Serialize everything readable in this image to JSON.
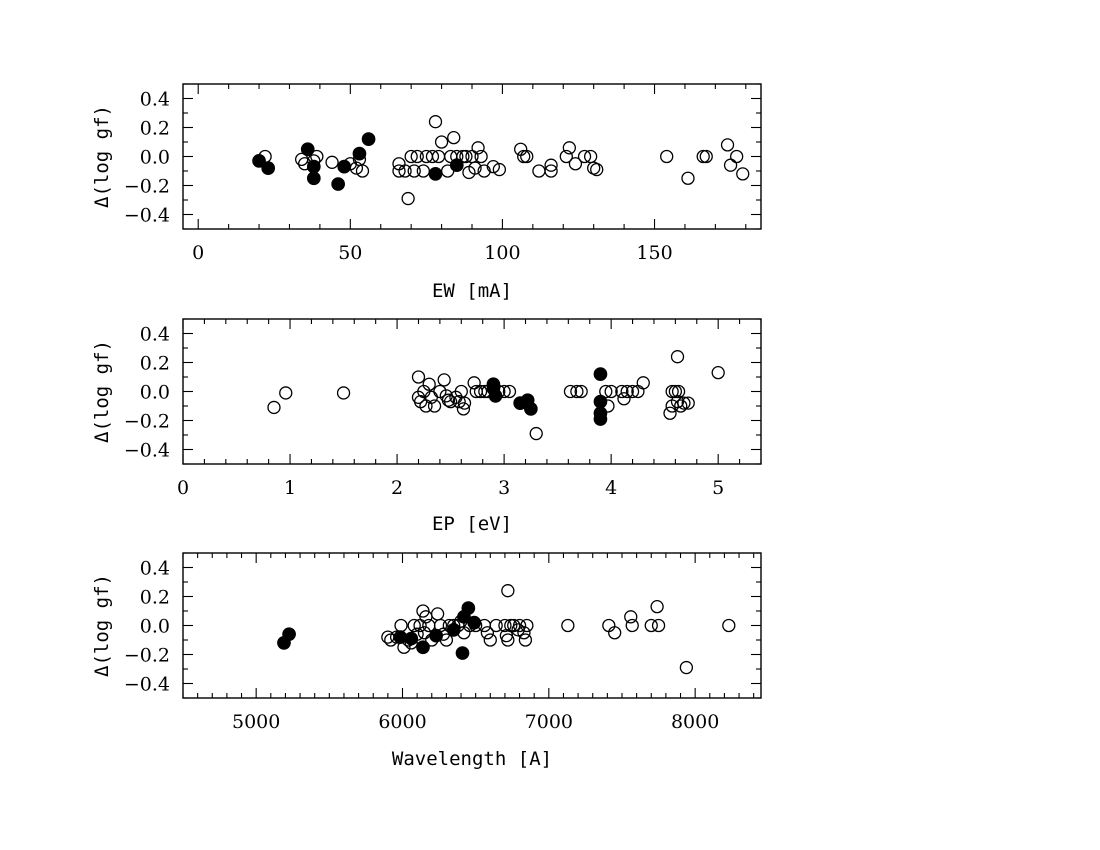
{
  "chart_data": [
    {
      "type": "scatter",
      "xlabel": "EW [mA]",
      "ylabel": "Δ(log gf)",
      "xlim": [
        -5,
        185
      ],
      "ylim": [
        -0.5,
        0.5
      ],
      "x_ticks": [
        0,
        50,
        100,
        150
      ],
      "y_ticks": [
        -0.4,
        -0.2,
        0.0,
        0.2,
        0.4
      ],
      "y_tick_labels": [
        "−0.4",
        "−0.2",
        "0.0",
        "0.2",
        "0.4"
      ],
      "series": [
        {
          "marker": "open-circle",
          "points": [
            [
              22,
              0
            ],
            [
              34,
              -0.02
            ],
            [
              35,
              -0.05
            ],
            [
              38,
              -0.03
            ],
            [
              39,
              0
            ],
            [
              44,
              -0.04
            ],
            [
              48,
              -0.07
            ],
            [
              50,
              -0.05
            ],
            [
              52,
              -0.08
            ],
            [
              53,
              -0.02
            ],
            [
              54,
              -0.1
            ],
            [
              66,
              -0.05
            ],
            [
              66,
              -0.1
            ],
            [
              68,
              -0.1
            ],
            [
              69,
              -0.29
            ],
            [
              70,
              0
            ],
            [
              71,
              -0.1
            ],
            [
              72,
              0
            ],
            [
              74,
              -0.1
            ],
            [
              75,
              0
            ],
            [
              77,
              0
            ],
            [
              78,
              0.24
            ],
            [
              79,
              0
            ],
            [
              80,
              0.1
            ],
            [
              82,
              -0.1
            ],
            [
              83,
              0
            ],
            [
              84,
              0.13
            ],
            [
              85,
              0
            ],
            [
              87,
              0
            ],
            [
              88,
              0
            ],
            [
              89,
              -0.11
            ],
            [
              90,
              0
            ],
            [
              91,
              -0.08
            ],
            [
              92,
              0.06
            ],
            [
              93,
              0
            ],
            [
              94,
              -0.1
            ],
            [
              97,
              -0.07
            ],
            [
              99,
              -0.09
            ],
            [
              106,
              0.05
            ],
            [
              107,
              0
            ],
            [
              108,
              0
            ],
            [
              112,
              -0.1
            ],
            [
              116,
              -0.06
            ],
            [
              116,
              -0.1
            ],
            [
              121,
              0
            ],
            [
              122,
              0.06
            ],
            [
              124,
              -0.05
            ],
            [
              127,
              0
            ],
            [
              129,
              0
            ],
            [
              130,
              -0.08
            ],
            [
              131,
              -0.09
            ],
            [
              154,
              0
            ],
            [
              161,
              -0.15
            ],
            [
              166,
              0
            ],
            [
              167,
              0
            ],
            [
              174,
              0.08
            ],
            [
              175,
              -0.06
            ],
            [
              177,
              0
            ],
            [
              179,
              -0.12
            ]
          ]
        },
        {
          "marker": "filled-circle",
          "points": [
            [
              20,
              -0.03
            ],
            [
              23,
              -0.08
            ],
            [
              36,
              0.05
            ],
            [
              38,
              -0.07
            ],
            [
              38,
              -0.15
            ],
            [
              46,
              -0.19
            ],
            [
              48,
              -0.07
            ],
            [
              53,
              0.02
            ],
            [
              56,
              0.12
            ],
            [
              78,
              -0.12
            ],
            [
              85,
              -0.06
            ]
          ]
        }
      ]
    },
    {
      "type": "scatter",
      "xlabel": "EP [eV]",
      "ylabel": "Δ(log gf)",
      "xlim": [
        0,
        5.4
      ],
      "ylim": [
        -0.5,
        0.5
      ],
      "x_ticks": [
        0,
        1,
        2,
        3,
        4,
        5
      ],
      "y_ticks": [
        -0.4,
        -0.2,
        0.0,
        0.2,
        0.4
      ],
      "y_tick_labels": [
        "−0.4",
        "−0.2",
        "0.0",
        "0.2",
        "0.4"
      ],
      "series": [
        {
          "marker": "open-circle",
          "points": [
            [
              0.85,
              -0.11
            ],
            [
              0.96,
              -0.01
            ],
            [
              1.5,
              -0.01
            ],
            [
              2.2,
              0.1
            ],
            [
              2.2,
              -0.04
            ],
            [
              2.22,
              -0.07
            ],
            [
              2.25,
              0
            ],
            [
              2.27,
              -0.1
            ],
            [
              2.3,
              0.05
            ],
            [
              2.32,
              -0.04
            ],
            [
              2.35,
              -0.1
            ],
            [
              2.4,
              0
            ],
            [
              2.44,
              0.08
            ],
            [
              2.46,
              -0.03
            ],
            [
              2.48,
              -0.06
            ],
            [
              2.5,
              -0.07
            ],
            [
              2.55,
              -0.04
            ],
            [
              2.58,
              -0.07
            ],
            [
              2.6,
              0
            ],
            [
              2.62,
              -0.12
            ],
            [
              2.63,
              -0.08
            ],
            [
              2.72,
              0.06
            ],
            [
              2.74,
              0
            ],
            [
              2.78,
              0
            ],
            [
              2.82,
              0
            ],
            [
              2.85,
              0
            ],
            [
              2.95,
              0
            ],
            [
              3.0,
              0
            ],
            [
              3.05,
              0
            ],
            [
              3.3,
              -0.29
            ],
            [
              3.62,
              0
            ],
            [
              3.68,
              0
            ],
            [
              3.72,
              0
            ],
            [
              3.95,
              0
            ],
            [
              3.97,
              -0.1
            ],
            [
              4.0,
              0
            ],
            [
              4.1,
              0
            ],
            [
              4.12,
              -0.05
            ],
            [
              4.15,
              0
            ],
            [
              4.2,
              0
            ],
            [
              4.25,
              0
            ],
            [
              4.3,
              0.06
            ],
            [
              4.55,
              -0.15
            ],
            [
              4.57,
              0
            ],
            [
              4.57,
              -0.1
            ],
            [
              4.6,
              0
            ],
            [
              4.62,
              0.24
            ],
            [
              4.62,
              -0.07
            ],
            [
              4.63,
              0
            ],
            [
              4.65,
              -0.1
            ],
            [
              4.68,
              -0.08
            ],
            [
              4.72,
              -0.08
            ],
            [
              5.0,
              0.13
            ]
          ]
        },
        {
          "marker": "filled-circle",
          "points": [
            [
              2.9,
              0.05
            ],
            [
              2.9,
              0.02
            ],
            [
              2.92,
              -0.03
            ],
            [
              3.15,
              -0.08
            ],
            [
              3.22,
              -0.06
            ],
            [
              3.25,
              -0.12
            ],
            [
              3.9,
              0.12
            ],
            [
              3.9,
              -0.07
            ],
            [
              3.9,
              -0.15
            ],
            [
              3.9,
              -0.19
            ]
          ]
        }
      ]
    },
    {
      "type": "scatter",
      "xlabel": "Wavelength [A]",
      "ylabel": "Δ(log gf)",
      "xlim": [
        4500,
        8450
      ],
      "ylim": [
        -0.5,
        0.5
      ],
      "x_ticks": [
        5000,
        6000,
        7000,
        8000
      ],
      "y_ticks": [
        -0.4,
        -0.2,
        0.0,
        0.2,
        0.4
      ],
      "y_tick_labels": [
        "−0.4",
        "−0.2",
        "0.0",
        "0.2",
        "0.4"
      ],
      "series": [
        {
          "marker": "open-circle",
          "points": [
            [
              5900,
              -0.08
            ],
            [
              5920,
              -0.1
            ],
            [
              5960,
              -0.08
            ],
            [
              5990,
              0
            ],
            [
              6010,
              -0.15
            ],
            [
              6040,
              -0.1
            ],
            [
              6060,
              -0.12
            ],
            [
              6080,
              0
            ],
            [
              6100,
              -0.06
            ],
            [
              6120,
              0
            ],
            [
              6140,
              0.1
            ],
            [
              6150,
              -0.05
            ],
            [
              6160,
              0.06
            ],
            [
              6180,
              0
            ],
            [
              6200,
              -0.1
            ],
            [
              6240,
              0.08
            ],
            [
              6260,
              0
            ],
            [
              6280,
              -0.06
            ],
            [
              6300,
              -0.1
            ],
            [
              6320,
              0
            ],
            [
              6350,
              0
            ],
            [
              6380,
              0
            ],
            [
              6400,
              0.03
            ],
            [
              6420,
              -0.05
            ],
            [
              6460,
              0
            ],
            [
              6500,
              0
            ],
            [
              6560,
              0
            ],
            [
              6580,
              -0.05
            ],
            [
              6600,
              -0.1
            ],
            [
              6640,
              0
            ],
            [
              6700,
              0
            ],
            [
              6710,
              -0.07
            ],
            [
              6720,
              -0.1
            ],
            [
              6720,
              0.24
            ],
            [
              6740,
              0
            ],
            [
              6760,
              0
            ],
            [
              6790,
              -0.03
            ],
            [
              6800,
              0
            ],
            [
              6830,
              -0.05
            ],
            [
              6840,
              -0.1
            ],
            [
              6850,
              0
            ],
            [
              7130,
              0
            ],
            [
              7410,
              0
            ],
            [
              7450,
              -0.05
            ],
            [
              7560,
              0.06
            ],
            [
              7570,
              0
            ],
            [
              7700,
              0
            ],
            [
              7740,
              0.13
            ],
            [
              7750,
              0
            ],
            [
              7940,
              -0.29
            ],
            [
              8230,
              0
            ]
          ]
        },
        {
          "marker": "filled-circle",
          "points": [
            [
              5190,
              -0.12
            ],
            [
              5225,
              -0.06
            ],
            [
              5985,
              -0.08
            ],
            [
              6060,
              -0.09
            ],
            [
              6140,
              -0.15
            ],
            [
              6230,
              -0.07
            ],
            [
              6350,
              -0.03
            ],
            [
              6410,
              -0.19
            ],
            [
              6420,
              0.06
            ],
            [
              6450,
              0.12
            ],
            [
              6490,
              0.02
            ]
          ]
        }
      ]
    }
  ]
}
